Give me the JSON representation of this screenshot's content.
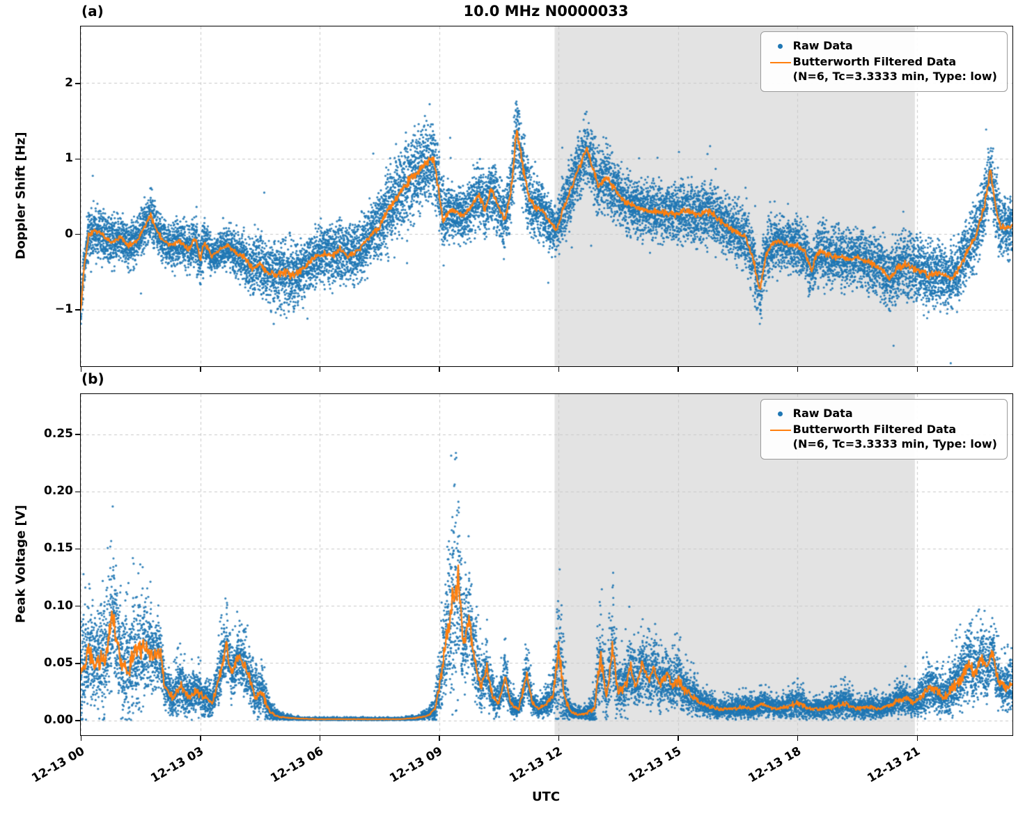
{
  "figure": {
    "xlabel": "UTC",
    "title": "10.0 MHz N0000033"
  },
  "colors": {
    "raw": "#1f77b4",
    "filtered": "#ff7f0e",
    "shade": "rgba(128,128,128,0.22)",
    "grid": "#c8c8c8",
    "axes": "#000000"
  },
  "time_axis": {
    "x_unit": "hours after 12-13 00:00 UTC",
    "x_min": 0,
    "x_max": 23.4,
    "tick_hours": [
      0,
      3,
      6,
      9,
      12,
      15,
      18,
      21
    ],
    "tick_labels": [
      "12-13 00",
      "12-13 03",
      "12-13 06",
      "12-13 09",
      "12-13 12",
      "12-13 15",
      "12-13 18",
      "12-13 21"
    ],
    "shade_start": 11.9,
    "shade_end": 20.95
  },
  "chart_data": [
    {
      "type": "scatter+line",
      "panel_label": "(a)",
      "title": "10.0 MHz N0000033",
      "ylabel": "Doppler Shift [Hz]",
      "y_min": -1.75,
      "y_max": 2.75,
      "y_ticks": [
        -1,
        0,
        1,
        2
      ],
      "y_tick_labels": [
        "−1",
        "0",
        "1",
        "2"
      ],
      "legend": {
        "raw": "Raw Data",
        "filtered": "Butterworth Filtered Data",
        "filtered_sub": "(N=6, Tc=3.3333 min, Type: low)"
      },
      "series": {
        "x": [
          0.0,
          0.08,
          0.2,
          0.4,
          0.6,
          0.8,
          1.0,
          1.2,
          1.4,
          1.6,
          1.75,
          1.9,
          2.1,
          2.3,
          2.5,
          2.7,
          2.9,
          3.0,
          3.1,
          3.3,
          3.5,
          3.7,
          3.9,
          4.1,
          4.3,
          4.5,
          4.7,
          4.9,
          5.1,
          5.3,
          5.5,
          5.7,
          5.9,
          6.1,
          6.3,
          6.5,
          6.7,
          6.9,
          7.1,
          7.3,
          7.5,
          7.7,
          7.9,
          8.1,
          8.3,
          8.5,
          8.7,
          8.85,
          9.0,
          9.1,
          9.25,
          9.4,
          9.6,
          9.8,
          10.0,
          10.15,
          10.3,
          10.5,
          10.65,
          10.8,
          10.95,
          11.1,
          11.25,
          11.4,
          11.6,
          11.8,
          11.95,
          12.1,
          12.3,
          12.5,
          12.7,
          12.85,
          13.0,
          13.2,
          13.4,
          13.6,
          13.8,
          14.0,
          14.3,
          14.6,
          14.9,
          15.2,
          15.5,
          15.8,
          16.1,
          16.4,
          16.7,
          16.9,
          17.05,
          17.2,
          17.4,
          17.6,
          17.8,
          18.0,
          18.2,
          18.35,
          18.5,
          18.7,
          18.9,
          19.1,
          19.3,
          19.5,
          19.7,
          19.9,
          20.1,
          20.3,
          20.5,
          20.7,
          20.9,
          21.1,
          21.3,
          21.5,
          21.7,
          21.9,
          22.1,
          22.3,
          22.5,
          22.7,
          22.85,
          23.0,
          23.1
        ],
        "filtered": [
          -1.0,
          -0.45,
          0.0,
          0.05,
          -0.05,
          -0.1,
          -0.05,
          -0.15,
          -0.1,
          0.1,
          0.25,
          0.05,
          -0.1,
          -0.15,
          -0.1,
          -0.2,
          -0.05,
          -0.35,
          -0.1,
          -0.3,
          -0.2,
          -0.15,
          -0.25,
          -0.3,
          -0.45,
          -0.4,
          -0.5,
          -0.55,
          -0.5,
          -0.55,
          -0.5,
          -0.4,
          -0.3,
          -0.25,
          -0.3,
          -0.2,
          -0.3,
          -0.25,
          -0.15,
          0.0,
          0.1,
          0.3,
          0.45,
          0.6,
          0.75,
          0.85,
          0.95,
          1.0,
          0.55,
          0.15,
          0.3,
          0.3,
          0.25,
          0.35,
          0.55,
          0.3,
          0.6,
          0.35,
          0.2,
          0.55,
          1.4,
          0.9,
          0.5,
          0.35,
          0.3,
          0.15,
          0.05,
          0.3,
          0.6,
          0.85,
          1.15,
          0.9,
          0.65,
          0.75,
          0.6,
          0.45,
          0.4,
          0.35,
          0.3,
          0.3,
          0.25,
          0.3,
          0.25,
          0.3,
          0.15,
          0.05,
          -0.05,
          -0.35,
          -0.75,
          -0.3,
          -0.1,
          -0.1,
          -0.15,
          -0.15,
          -0.25,
          -0.5,
          -0.25,
          -0.25,
          -0.3,
          -0.3,
          -0.35,
          -0.3,
          -0.35,
          -0.4,
          -0.45,
          -0.6,
          -0.45,
          -0.4,
          -0.45,
          -0.5,
          -0.55,
          -0.5,
          -0.55,
          -0.6,
          -0.4,
          -0.2,
          0.0,
          0.4,
          0.85,
          0.3,
          0.1
        ],
        "spread": [
          0.3,
          0.32,
          0.35,
          0.35,
          0.4,
          0.35,
          0.35,
          0.35,
          0.3,
          0.35,
          0.35,
          0.3,
          0.3,
          0.3,
          0.35,
          0.3,
          0.45,
          0.4,
          0.3,
          0.25,
          0.25,
          0.3,
          0.35,
          0.35,
          0.4,
          0.4,
          0.45,
          0.45,
          0.5,
          0.5,
          0.45,
          0.4,
          0.4,
          0.4,
          0.4,
          0.45,
          0.4,
          0.4,
          0.4,
          0.45,
          0.5,
          0.55,
          0.6,
          0.65,
          0.65,
          0.6,
          0.6,
          0.6,
          0.5,
          0.5,
          0.4,
          0.35,
          0.35,
          0.45,
          0.45,
          0.45,
          0.45,
          0.5,
          0.45,
          0.5,
          0.6,
          0.55,
          0.5,
          0.45,
          0.4,
          0.35,
          0.3,
          0.45,
          0.5,
          0.5,
          0.45,
          0.45,
          0.45,
          0.45,
          0.45,
          0.4,
          0.4,
          0.4,
          0.4,
          0.4,
          0.4,
          0.45,
          0.4,
          0.45,
          0.4,
          0.4,
          0.4,
          0.45,
          0.45,
          0.4,
          0.4,
          0.35,
          0.35,
          0.35,
          0.4,
          0.4,
          0.4,
          0.4,
          0.4,
          0.4,
          0.4,
          0.4,
          0.4,
          0.4,
          0.45,
          0.45,
          0.45,
          0.45,
          0.45,
          0.45,
          0.45,
          0.45,
          0.45,
          0.45,
          0.45,
          0.45,
          0.45,
          0.5,
          0.5,
          0.45,
          0.4
        ]
      }
    },
    {
      "type": "scatter+line",
      "panel_label": "(b)",
      "ylabel": "Peak Voltage [V]",
      "y_min": -0.013,
      "y_max": 0.285,
      "y_ticks": [
        0.0,
        0.05,
        0.1,
        0.15,
        0.2,
        0.25
      ],
      "y_tick_labels": [
        "0.00",
        "0.05",
        "0.10",
        "0.15",
        "0.20",
        "0.25"
      ],
      "legend": {
        "raw": "Raw Data",
        "filtered": "Butterworth Filtered Data",
        "filtered_sub": "(N=6, Tc=3.3333 min, Type: low)"
      },
      "series": {
        "x": [
          0.0,
          0.2,
          0.4,
          0.6,
          0.8,
          1.0,
          1.2,
          1.4,
          1.6,
          1.8,
          2.0,
          2.1,
          2.3,
          2.5,
          2.7,
          2.9,
          3.1,
          3.3,
          3.5,
          3.65,
          3.8,
          3.95,
          4.1,
          4.25,
          4.4,
          4.55,
          4.7,
          4.85,
          5.0,
          5.3,
          5.6,
          6.0,
          6.5,
          7.0,
          7.5,
          8.0,
          8.4,
          8.7,
          8.9,
          9.05,
          9.2,
          9.35,
          9.5,
          9.6,
          9.75,
          9.9,
          10.05,
          10.2,
          10.35,
          10.5,
          10.65,
          10.8,
          11.0,
          11.2,
          11.35,
          11.5,
          11.7,
          11.85,
          12.0,
          12.15,
          12.3,
          12.5,
          12.7,
          12.9,
          13.05,
          13.2,
          13.35,
          13.5,
          13.65,
          13.8,
          13.95,
          14.1,
          14.25,
          14.4,
          14.55,
          14.7,
          14.85,
          15.0,
          15.2,
          15.4,
          15.6,
          15.8,
          16.0,
          16.3,
          16.6,
          16.9,
          17.1,
          17.4,
          17.7,
          18.0,
          18.3,
          18.6,
          18.9,
          19.2,
          19.5,
          19.8,
          20.1,
          20.4,
          20.7,
          20.9,
          21.1,
          21.3,
          21.5,
          21.7,
          21.9,
          22.1,
          22.3,
          22.45,
          22.6,
          22.75,
          22.9,
          23.0,
          23.1
        ],
        "filtered": [
          0.04,
          0.06,
          0.05,
          0.055,
          0.09,
          0.05,
          0.045,
          0.06,
          0.065,
          0.055,
          0.06,
          0.03,
          0.02,
          0.03,
          0.02,
          0.025,
          0.02,
          0.015,
          0.04,
          0.065,
          0.04,
          0.055,
          0.05,
          0.035,
          0.02,
          0.025,
          0.01,
          0.005,
          0.003,
          0.002,
          0.0015,
          0.001,
          0.001,
          0.001,
          0.001,
          0.001,
          0.002,
          0.004,
          0.01,
          0.04,
          0.08,
          0.1,
          0.125,
          0.06,
          0.09,
          0.05,
          0.03,
          0.045,
          0.02,
          0.015,
          0.04,
          0.015,
          0.01,
          0.04,
          0.015,
          0.01,
          0.015,
          0.02,
          0.06,
          0.02,
          0.008,
          0.005,
          0.006,
          0.01,
          0.055,
          0.02,
          0.06,
          0.025,
          0.03,
          0.045,
          0.03,
          0.05,
          0.035,
          0.045,
          0.03,
          0.04,
          0.03,
          0.035,
          0.025,
          0.02,
          0.015,
          0.012,
          0.01,
          0.01,
          0.012,
          0.01,
          0.015,
          0.01,
          0.012,
          0.015,
          0.01,
          0.01,
          0.012,
          0.015,
          0.01,
          0.012,
          0.01,
          0.015,
          0.02,
          0.015,
          0.02,
          0.03,
          0.025,
          0.02,
          0.03,
          0.035,
          0.05,
          0.04,
          0.055,
          0.045,
          0.06,
          0.04,
          0.03
        ],
        "spread": [
          0.09,
          0.08,
          0.07,
          0.1,
          0.1,
          0.08,
          0.09,
          0.1,
          0.08,
          0.06,
          0.05,
          0.04,
          0.035,
          0.04,
          0.03,
          0.035,
          0.03,
          0.025,
          0.05,
          0.05,
          0.04,
          0.045,
          0.05,
          0.04,
          0.03,
          0.035,
          0.02,
          0.01,
          0.005,
          0.003,
          0.002,
          0.002,
          0.002,
          0.002,
          0.002,
          0.002,
          0.003,
          0.006,
          0.02,
          0.06,
          0.1,
          0.17,
          0.14,
          0.09,
          0.08,
          0.06,
          0.05,
          0.05,
          0.03,
          0.025,
          0.04,
          0.02,
          0.015,
          0.04,
          0.02,
          0.015,
          0.02,
          0.03,
          0.11,
          0.04,
          0.012,
          0.008,
          0.01,
          0.03,
          0.08,
          0.04,
          0.08,
          0.04,
          0.05,
          0.06,
          0.04,
          0.05,
          0.045,
          0.05,
          0.04,
          0.05,
          0.04,
          0.045,
          0.035,
          0.03,
          0.02,
          0.018,
          0.015,
          0.015,
          0.018,
          0.015,
          0.02,
          0.015,
          0.02,
          0.025,
          0.015,
          0.015,
          0.02,
          0.025,
          0.015,
          0.02,
          0.015,
          0.02,
          0.03,
          0.02,
          0.03,
          0.04,
          0.035,
          0.03,
          0.045,
          0.05,
          0.06,
          0.05,
          0.055,
          0.05,
          0.05,
          0.045,
          0.04
        ]
      }
    }
  ]
}
